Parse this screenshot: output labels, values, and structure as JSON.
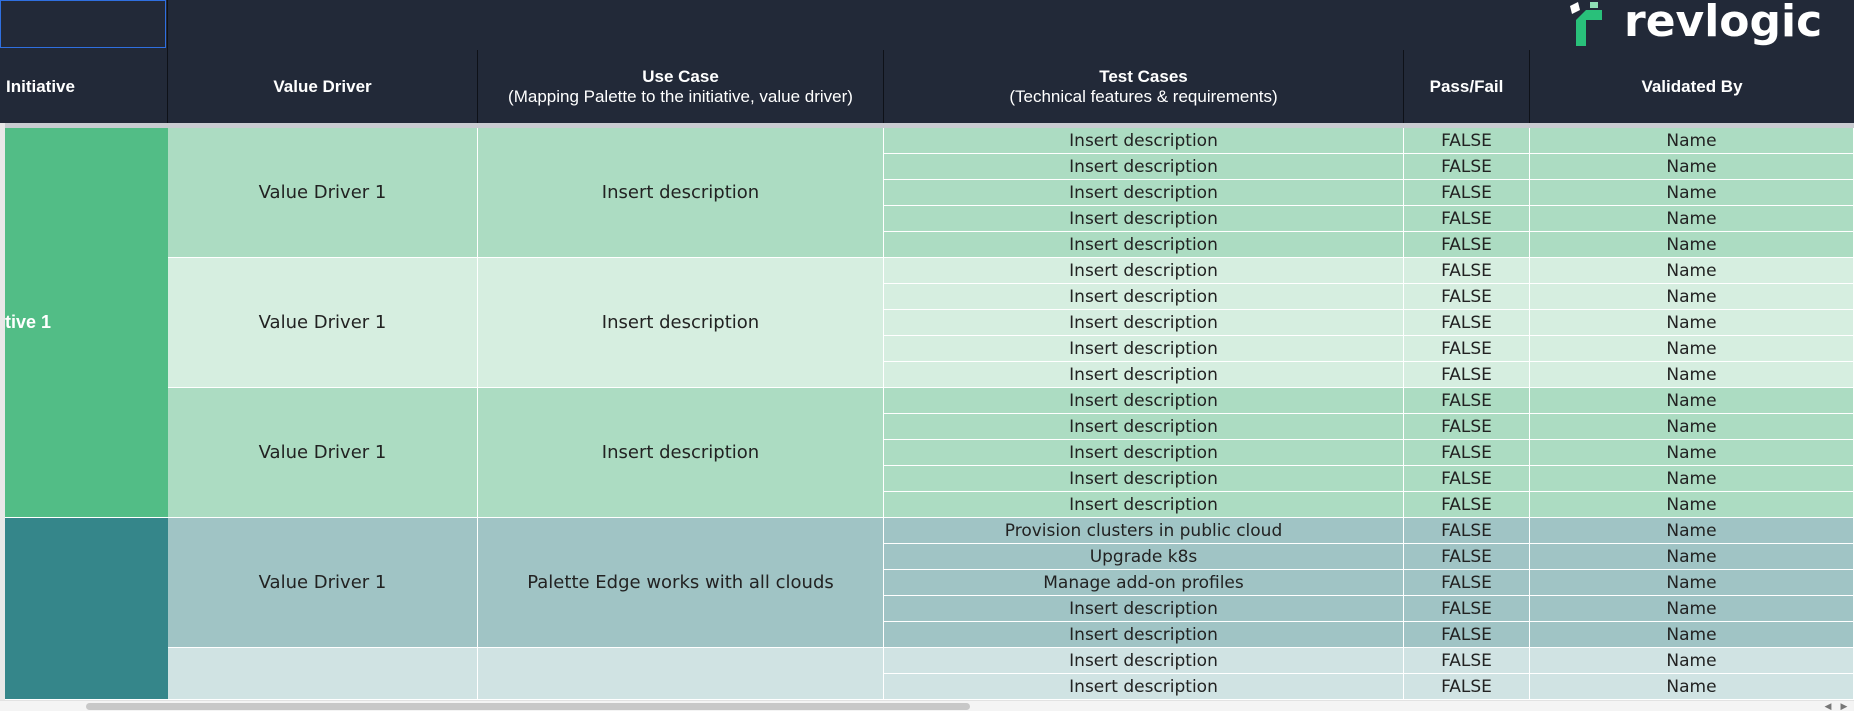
{
  "logo": {
    "text": "revlogic"
  },
  "headers": {
    "initiative": "Initiative",
    "value_driver": "Value Driver",
    "use_case": {
      "title": "Use Case",
      "subtitle": "(Mapping Palette to the initiative, value driver)"
    },
    "test_cases": {
      "title": "Test Cases",
      "subtitle": "(Technical features & requirements)"
    },
    "pass_fail": "Pass/Fail",
    "validated_by": "Validated By"
  },
  "colors": {
    "header_bg": "#222938",
    "initiative_1": "#52bd86",
    "initiative_2": "#35868a",
    "group_mid_green": "#acdcc2",
    "group_light_green": "#d6eee0",
    "group_mid_teal": "#a0c4c5",
    "group_light_teal": "#d0e3e3"
  },
  "initiatives": [
    {
      "label": "tive 1",
      "rows": 15
    },
    {
      "label": "",
      "rows": 7
    }
  ],
  "groups": [
    {
      "value_driver": "Value Driver 1",
      "use_case": "Insert description",
      "shade": "mid_green",
      "rows": [
        {
          "test_case": "Insert description",
          "pass_fail": "FALSE",
          "validated_by": "Name"
        },
        {
          "test_case": "Insert description",
          "pass_fail": "FALSE",
          "validated_by": "Name"
        },
        {
          "test_case": "Insert description",
          "pass_fail": "FALSE",
          "validated_by": "Name"
        },
        {
          "test_case": "Insert description",
          "pass_fail": "FALSE",
          "validated_by": "Name"
        },
        {
          "test_case": "Insert description",
          "pass_fail": "FALSE",
          "validated_by": "Name"
        }
      ]
    },
    {
      "value_driver": "Value Driver 1",
      "use_case": "Insert description",
      "shade": "light_green",
      "rows": [
        {
          "test_case": "Insert description",
          "pass_fail": "FALSE",
          "validated_by": "Name"
        },
        {
          "test_case": "Insert description",
          "pass_fail": "FALSE",
          "validated_by": "Name"
        },
        {
          "test_case": "Insert description",
          "pass_fail": "FALSE",
          "validated_by": "Name"
        },
        {
          "test_case": "Insert description",
          "pass_fail": "FALSE",
          "validated_by": "Name"
        },
        {
          "test_case": "Insert description",
          "pass_fail": "FALSE",
          "validated_by": "Name"
        }
      ]
    },
    {
      "value_driver": "Value Driver 1",
      "use_case": "Insert description",
      "shade": "mid_green",
      "rows": [
        {
          "test_case": "Insert description",
          "pass_fail": "FALSE",
          "validated_by": "Name"
        },
        {
          "test_case": "Insert description",
          "pass_fail": "FALSE",
          "validated_by": "Name"
        },
        {
          "test_case": "Insert description",
          "pass_fail": "FALSE",
          "validated_by": "Name"
        },
        {
          "test_case": "Insert description",
          "pass_fail": "FALSE",
          "validated_by": "Name"
        },
        {
          "test_case": "Insert description",
          "pass_fail": "FALSE",
          "validated_by": "Name"
        }
      ]
    },
    {
      "value_driver": "Value Driver 1",
      "use_case": "Palette Edge works with all clouds",
      "shade": "mid_teal",
      "rows": [
        {
          "test_case": "Provision clusters in public cloud",
          "pass_fail": "FALSE",
          "validated_by": "Name"
        },
        {
          "test_case": "Upgrade k8s",
          "pass_fail": "FALSE",
          "validated_by": "Name"
        },
        {
          "test_case": "Manage add-on profiles",
          "pass_fail": "FALSE",
          "validated_by": "Name"
        },
        {
          "test_case": "Insert description",
          "pass_fail": "FALSE",
          "validated_by": "Name"
        },
        {
          "test_case": "Insert description",
          "pass_fail": "FALSE",
          "validated_by": "Name"
        }
      ]
    },
    {
      "value_driver": "",
      "use_case": "",
      "shade": "light_teal",
      "rows": [
        {
          "test_case": "Insert description",
          "pass_fail": "FALSE",
          "validated_by": "Name"
        },
        {
          "test_case": "Insert description",
          "pass_fail": "FALSE",
          "validated_by": "Name"
        }
      ]
    }
  ]
}
